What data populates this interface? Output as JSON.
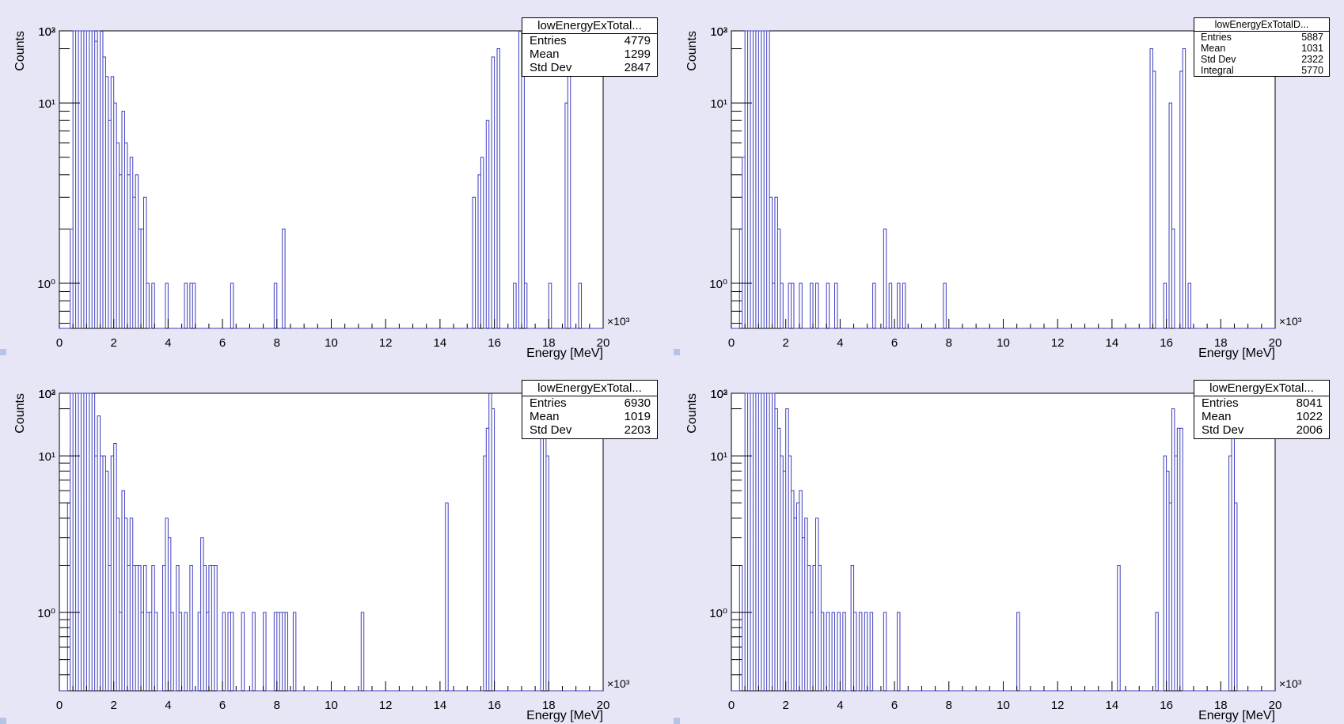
{
  "chart_data": [
    {
      "type": "histogram",
      "xlabel": "Energy [MeV]",
      "ylabel": "Counts",
      "x_multiplier_label": "×10³",
      "xlim": [
        0,
        20
      ],
      "ylim_log": [
        -0.25,
        1.4
      ],
      "log_y": true,
      "x_ticks": [
        "0",
        "2",
        "4",
        "6",
        "8",
        "10",
        "12",
        "14",
        "16",
        "18",
        "20"
      ],
      "y_ticks": [
        "10⁰",
        "10¹",
        "10²",
        "10³"
      ],
      "stats": {
        "title": "lowEnergyExTotal...",
        "rows": [
          {
            "label": "Entries",
            "value": "4779"
          },
          {
            "label": "Mean",
            "value": "1299"
          },
          {
            "label": "Std Dev",
            "value": "2847"
          }
        ]
      },
      "bins": [
        [
          0.4,
          2
        ],
        [
          0.5,
          900
        ],
        [
          0.6,
          1500
        ],
        [
          0.7,
          1000
        ],
        [
          0.8,
          400
        ],
        [
          0.9,
          150
        ],
        [
          1.0,
          120
        ],
        [
          1.1,
          70
        ],
        [
          1.2,
          45
        ],
        [
          1.3,
          22
        ],
        [
          1.4,
          30
        ],
        [
          1.5,
          25
        ],
        [
          1.6,
          18
        ],
        [
          1.7,
          14
        ],
        [
          1.8,
          8
        ],
        [
          1.9,
          14
        ],
        [
          2.0,
          10
        ],
        [
          2.1,
          6
        ],
        [
          2.2,
          4
        ],
        [
          2.3,
          9
        ],
        [
          2.4,
          6
        ],
        [
          2.5,
          4
        ],
        [
          2.6,
          5
        ],
        [
          2.7,
          3
        ],
        [
          2.8,
          4
        ],
        [
          2.9,
          2
        ],
        [
          3.0,
          2
        ],
        [
          3.1,
          3
        ],
        [
          3.2,
          1
        ],
        [
          3.4,
          1
        ],
        [
          3.9,
          1
        ],
        [
          4.6,
          1
        ],
        [
          4.8,
          1
        ],
        [
          4.9,
          1
        ],
        [
          6.3,
          1
        ],
        [
          7.9,
          1
        ],
        [
          8.2,
          2
        ],
        [
          15.2,
          3
        ],
        [
          15.4,
          4
        ],
        [
          15.5,
          5
        ],
        [
          15.7,
          8
        ],
        [
          15.9,
          18
        ],
        [
          16.1,
          20
        ],
        [
          16.7,
          1
        ],
        [
          16.9,
          25
        ],
        [
          17.0,
          30
        ],
        [
          17.1,
          1
        ],
        [
          18.0,
          1
        ],
        [
          18.6,
          10
        ],
        [
          18.7,
          15
        ],
        [
          19.1,
          1
        ]
      ]
    },
    {
      "type": "histogram",
      "xlabel": "Energy [MeV]",
      "ylabel": "Counts",
      "x_multiplier_label": "×10³",
      "xlim": [
        0,
        20
      ],
      "ylim_log": [
        -0.25,
        1.4
      ],
      "log_y": true,
      "x_ticks": [
        "0",
        "2",
        "4",
        "6",
        "8",
        "10",
        "12",
        "14",
        "16",
        "18",
        "20"
      ],
      "y_ticks": [
        "10⁰",
        "10¹",
        "10²",
        "10³"
      ],
      "stats": {
        "title": "lowEnergyExTotalD...",
        "small": true,
        "rows": [
          {
            "label": "Entries",
            "value": "5887"
          },
          {
            "label": "Mean",
            "value": "1031"
          },
          {
            "label": "Std Dev",
            "value": "2322"
          },
          {
            "label": "Integral",
            "value": "5770"
          }
        ]
      },
      "bins": [
        [
          0.3,
          2
        ],
        [
          0.4,
          5
        ],
        [
          0.5,
          250
        ],
        [
          0.6,
          1000
        ],
        [
          0.7,
          1400
        ],
        [
          0.8,
          600
        ],
        [
          0.9,
          150
        ],
        [
          1.0,
          50
        ],
        [
          1.1,
          90
        ],
        [
          1.2,
          80
        ],
        [
          1.3,
          30
        ],
        [
          1.4,
          3
        ],
        [
          1.5,
          1
        ],
        [
          1.6,
          3
        ],
        [
          1.7,
          2
        ],
        [
          1.8,
          1
        ],
        [
          2.1,
          1
        ],
        [
          2.2,
          1
        ],
        [
          2.5,
          1
        ],
        [
          2.9,
          1
        ],
        [
          3.1,
          1
        ],
        [
          3.5,
          1
        ],
        [
          3.8,
          1
        ],
        [
          5.2,
          1
        ],
        [
          5.6,
          2
        ],
        [
          5.8,
          1
        ],
        [
          6.1,
          1
        ],
        [
          6.3,
          1
        ],
        [
          7.8,
          1
        ],
        [
          15.4,
          20
        ],
        [
          15.5,
          15
        ],
        [
          15.9,
          1
        ],
        [
          16.1,
          10
        ],
        [
          16.2,
          2
        ],
        [
          16.5,
          15
        ],
        [
          16.6,
          20
        ],
        [
          16.8,
          1
        ]
      ]
    },
    {
      "type": "histogram",
      "xlabel": "Energy [MeV]",
      "ylabel": "Counts",
      "x_multiplier_label": "×10³",
      "xlim": [
        0,
        20
      ],
      "ylim_log": [
        -0.5,
        1.4
      ],
      "log_y": true,
      "x_ticks": [
        "0",
        "2",
        "4",
        "6",
        "8",
        "10",
        "12",
        "14",
        "16",
        "18",
        "20"
      ],
      "y_ticks": [
        "10⁰",
        "10¹",
        "10²",
        "10³"
      ],
      "stats": {
        "title": "lowEnergyExTotal...",
        "rows": [
          {
            "label": "Entries",
            "value": "6930"
          },
          {
            "label": "Mean",
            "value": "1019"
          },
          {
            "label": "Std Dev",
            "value": "2203"
          }
        ]
      },
      "bins": [
        [
          0.3,
          5
        ],
        [
          0.4,
          300
        ],
        [
          0.5,
          1400
        ],
        [
          0.6,
          2000
        ],
        [
          0.7,
          1300
        ],
        [
          0.8,
          500
        ],
        [
          0.9,
          200
        ],
        [
          1.0,
          120
        ],
        [
          1.1,
          60
        ],
        [
          1.2,
          25
        ],
        [
          1.3,
          10
        ],
        [
          1.4,
          18
        ],
        [
          1.5,
          10
        ],
        [
          1.6,
          10
        ],
        [
          1.7,
          8
        ],
        [
          1.8,
          2
        ],
        [
          1.9,
          10
        ],
        [
          2.0,
          12
        ],
        [
          2.1,
          4
        ],
        [
          2.2,
          1
        ],
        [
          2.3,
          6
        ],
        [
          2.4,
          4
        ],
        [
          2.5,
          2
        ],
        [
          2.6,
          4
        ],
        [
          2.7,
          2
        ],
        [
          2.8,
          2
        ],
        [
          2.9,
          2
        ],
        [
          3.0,
          1
        ],
        [
          3.1,
          2
        ],
        [
          3.2,
          1
        ],
        [
          3.3,
          1
        ],
        [
          3.4,
          2
        ],
        [
          3.5,
          1
        ],
        [
          3.8,
          2
        ],
        [
          3.9,
          4
        ],
        [
          4.0,
          3
        ],
        [
          4.1,
          1
        ],
        [
          4.3,
          2
        ],
        [
          4.4,
          1
        ],
        [
          4.6,
          1
        ],
        [
          4.8,
          2
        ],
        [
          5.1,
          1
        ],
        [
          5.2,
          3
        ],
        [
          5.3,
          2
        ],
        [
          5.4,
          1
        ],
        [
          5.5,
          2
        ],
        [
          5.6,
          2
        ],
        [
          5.7,
          2
        ],
        [
          6.0,
          1
        ],
        [
          6.2,
          1
        ],
        [
          6.3,
          1
        ],
        [
          6.7,
          1
        ],
        [
          7.1,
          1
        ],
        [
          7.5,
          1
        ],
        [
          7.9,
          1
        ],
        [
          8.0,
          1
        ],
        [
          8.1,
          1
        ],
        [
          8.2,
          1
        ],
        [
          8.3,
          1
        ],
        [
          8.6,
          1
        ],
        [
          11.1,
          1
        ],
        [
          14.2,
          5
        ],
        [
          15.6,
          10
        ],
        [
          15.7,
          15
        ],
        [
          15.8,
          25
        ],
        [
          15.9,
          20
        ],
        [
          17.7,
          15
        ],
        [
          17.8,
          20
        ],
        [
          17.9,
          10
        ]
      ]
    },
    {
      "type": "histogram",
      "xlabel": "Energy [MeV]",
      "ylabel": "Counts",
      "x_multiplier_label": "×10³",
      "xlim": [
        0,
        20
      ],
      "ylim_log": [
        -0.5,
        1.4
      ],
      "log_y": true,
      "x_ticks": [
        "0",
        "2",
        "4",
        "6",
        "8",
        "10",
        "12",
        "14",
        "16",
        "18",
        "20"
      ],
      "y_ticks": [
        "10⁰",
        "10¹",
        "10²",
        "10³"
      ],
      "stats": {
        "title": "lowEnergyExTotal...",
        "rows": [
          {
            "label": "Entries",
            "value": "8041"
          },
          {
            "label": "Mean",
            "value": "1022"
          },
          {
            "label": "Std Dev",
            "value": "2006"
          }
        ]
      },
      "bins": [
        [
          0.3,
          2
        ],
        [
          0.4,
          1
        ],
        [
          0.5,
          250
        ],
        [
          0.6,
          1200
        ],
        [
          0.7,
          2000
        ],
        [
          0.8,
          1000
        ],
        [
          0.9,
          450
        ],
        [
          1.0,
          200
        ],
        [
          1.1,
          100
        ],
        [
          1.2,
          50
        ],
        [
          1.3,
          30
        ],
        [
          1.4,
          50
        ],
        [
          1.5,
          40
        ],
        [
          1.6,
          20
        ],
        [
          1.7,
          15
        ],
        [
          1.8,
          10
        ],
        [
          1.9,
          8
        ],
        [
          2.0,
          20
        ],
        [
          2.1,
          10
        ],
        [
          2.2,
          6
        ],
        [
          2.3,
          4
        ],
        [
          2.4,
          5
        ],
        [
          2.5,
          6
        ],
        [
          2.6,
          3
        ],
        [
          2.7,
          4
        ],
        [
          2.8,
          2
        ],
        [
          2.9,
          1
        ],
        [
          3.0,
          2
        ],
        [
          3.1,
          4
        ],
        [
          3.2,
          2
        ],
        [
          3.3,
          1
        ],
        [
          3.5,
          1
        ],
        [
          3.7,
          1
        ],
        [
          3.9,
          1
        ],
        [
          4.1,
          1
        ],
        [
          4.4,
          2
        ],
        [
          4.5,
          1
        ],
        [
          4.7,
          1
        ],
        [
          4.9,
          1
        ],
        [
          5.1,
          1
        ],
        [
          5.6,
          1
        ],
        [
          6.1,
          1
        ],
        [
          10.5,
          1
        ],
        [
          14.2,
          2
        ],
        [
          15.6,
          1
        ],
        [
          15.9,
          10
        ],
        [
          16.0,
          8
        ],
        [
          16.1,
          5
        ],
        [
          16.2,
          20
        ],
        [
          16.3,
          10
        ],
        [
          16.4,
          15
        ],
        [
          16.5,
          15
        ],
        [
          18.3,
          10
        ],
        [
          18.4,
          20
        ],
        [
          18.5,
          5
        ]
      ]
    }
  ]
}
